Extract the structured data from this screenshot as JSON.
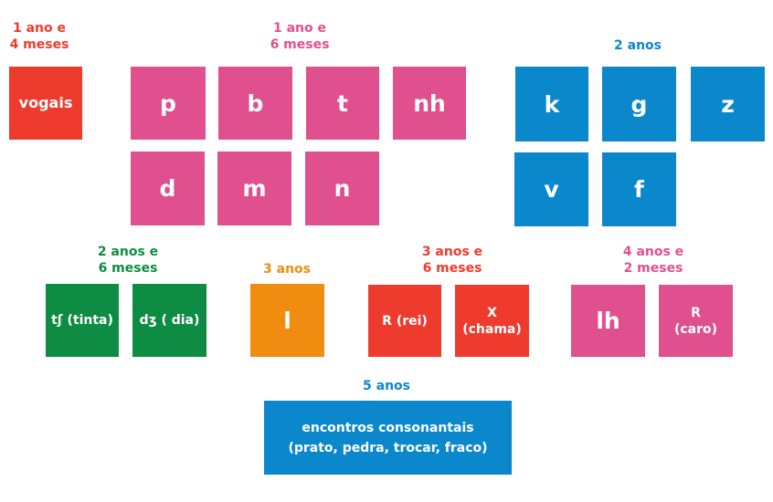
{
  "colors": {
    "red": "#ef3b2d",
    "pink": "#e0508e",
    "blue": "#0b88cc",
    "green": "#0f8c43",
    "orange": "#f08c10"
  },
  "groups": {
    "g1": {
      "label": "1 ano e\n4 meses",
      "items": [
        "vogais"
      ]
    },
    "g2": {
      "label": "1 ano e\n6 meses",
      "items": [
        "p",
        "b",
        "t",
        "nh",
        "d",
        "m",
        "n"
      ]
    },
    "g3": {
      "label": "2 anos",
      "items": [
        "k",
        "g",
        "z",
        "v",
        "f"
      ]
    },
    "g4": {
      "label": "2 anos e\n6 meses",
      "items": [
        "tʃ (tinta)",
        "dʒ ( dia)"
      ]
    },
    "g5": {
      "label": "3 anos",
      "items": [
        "l"
      ]
    },
    "g6": {
      "label": "3 anos e\n6 meses",
      "items": [
        "R (rei)",
        "X\n(chama)"
      ]
    },
    "g7": {
      "label": "4 anos e\n2 meses",
      "items": [
        "lh",
        "R\n(caro)"
      ]
    },
    "g8": {
      "label": "5 anos",
      "items": [
        "encontros consonantais\n(prato, pedra, trocar, fraco)"
      ]
    }
  }
}
